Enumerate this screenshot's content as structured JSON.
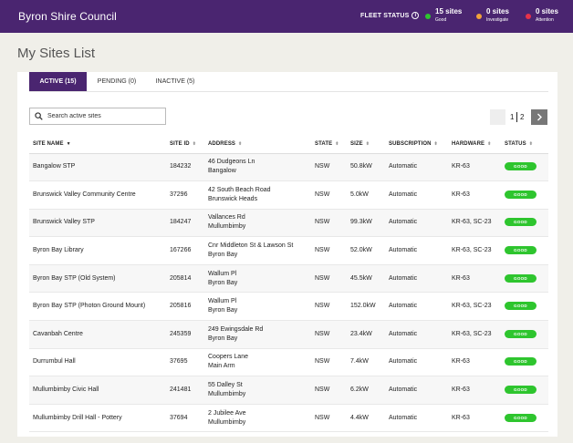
{
  "header": {
    "brand": "Byron Shire Council",
    "fleet_status_label": "FLEET STATUS",
    "stats": [
      {
        "count": "15 sites",
        "label": "Good",
        "color": "#2ec52e"
      },
      {
        "count": "0 sites",
        "label": "Investigate",
        "color": "#f2a23a"
      },
      {
        "count": "0 sites",
        "label": "Attention",
        "color": "#e8334a"
      }
    ]
  },
  "page_title": "My Sites List",
  "tabs": [
    {
      "label": "ACTIVE (15)",
      "active": true
    },
    {
      "label": "PENDING (0)",
      "active": false
    },
    {
      "label": "INACTIVE (5)",
      "active": false
    }
  ],
  "search": {
    "placeholder": "Search active sites"
  },
  "pagination": {
    "pages": [
      "1",
      "2"
    ],
    "next_icon": "chevron-right-icon"
  },
  "table": {
    "columns": [
      "SITE NAME",
      "SITE ID",
      "ADDRESS",
      "STATE",
      "SIZE",
      "SUBSCRIPTION",
      "HARDWARE",
      "STATUS"
    ],
    "rows": [
      {
        "name": "Bangalow STP",
        "id": "184232",
        "addr1": "46 Dudgeons Ln",
        "addr2": "Bangalow",
        "state": "NSW",
        "size": "50.8kW",
        "subscription": "Automatic",
        "hardware": "KR-63",
        "status": "GOOD"
      },
      {
        "name": "Brunswick Valley Community Centre",
        "id": "37296",
        "addr1": "42 South Beach Road",
        "addr2": "Brunswick Heads",
        "state": "NSW",
        "size": "5.0kW",
        "subscription": "Automatic",
        "hardware": "KR-63",
        "status": "GOOD"
      },
      {
        "name": "Brunswick Valley STP",
        "id": "184247",
        "addr1": "Vallances Rd",
        "addr2": "Mullumbimby",
        "state": "NSW",
        "size": "99.3kW",
        "subscription": "Automatic",
        "hardware": "KR-63, SC-23",
        "status": "GOOD"
      },
      {
        "name": "Byron Bay Library",
        "id": "167266",
        "addr1": "Cnr Middleton St & Lawson St",
        "addr2": "Byron Bay",
        "state": "NSW",
        "size": "52.0kW",
        "subscription": "Automatic",
        "hardware": "KR-63, SC-23",
        "status": "GOOD"
      },
      {
        "name": "Byron Bay STP (Old System)",
        "id": "205814",
        "addr1": "Wallum Pl",
        "addr2": "Byron Bay",
        "state": "NSW",
        "size": "45.5kW",
        "subscription": "Automatic",
        "hardware": "KR-63",
        "status": "GOOD"
      },
      {
        "name": "Byron Bay STP (Photon Ground Mount)",
        "id": "205816",
        "addr1": "Wallum Pl",
        "addr2": "Byron Bay",
        "state": "NSW",
        "size": "152.0kW",
        "subscription": "Automatic",
        "hardware": "KR-63, SC-23",
        "status": "GOOD"
      },
      {
        "name": "Cavanbah Centre",
        "id": "245359",
        "addr1": "249 Ewingsdale Rd",
        "addr2": "Byron Bay",
        "state": "NSW",
        "size": "23.4kW",
        "subscription": "Automatic",
        "hardware": "KR-63, SC-23",
        "status": "GOOD"
      },
      {
        "name": "Durrumbul Hall",
        "id": "37695",
        "addr1": "Coopers Lane",
        "addr2": "Main Arm",
        "state": "NSW",
        "size": "7.4kW",
        "subscription": "Automatic",
        "hardware": "KR-63",
        "status": "GOOD"
      },
      {
        "name": "Mullumbimby Civic Hall",
        "id": "241481",
        "addr1": "55 Dalley St",
        "addr2": "Mullumbimby",
        "state": "NSW",
        "size": "6.2kW",
        "subscription": "Automatic",
        "hardware": "KR-63",
        "status": "GOOD"
      },
      {
        "name": "Mullumbimby Drill Hall - Pottery",
        "id": "37694",
        "addr1": "2 Jubilee Ave",
        "addr2": "Mullumbimby",
        "state": "NSW",
        "size": "4.4kW",
        "subscription": "Automatic",
        "hardware": "KR-63",
        "status": "GOOD"
      }
    ]
  }
}
